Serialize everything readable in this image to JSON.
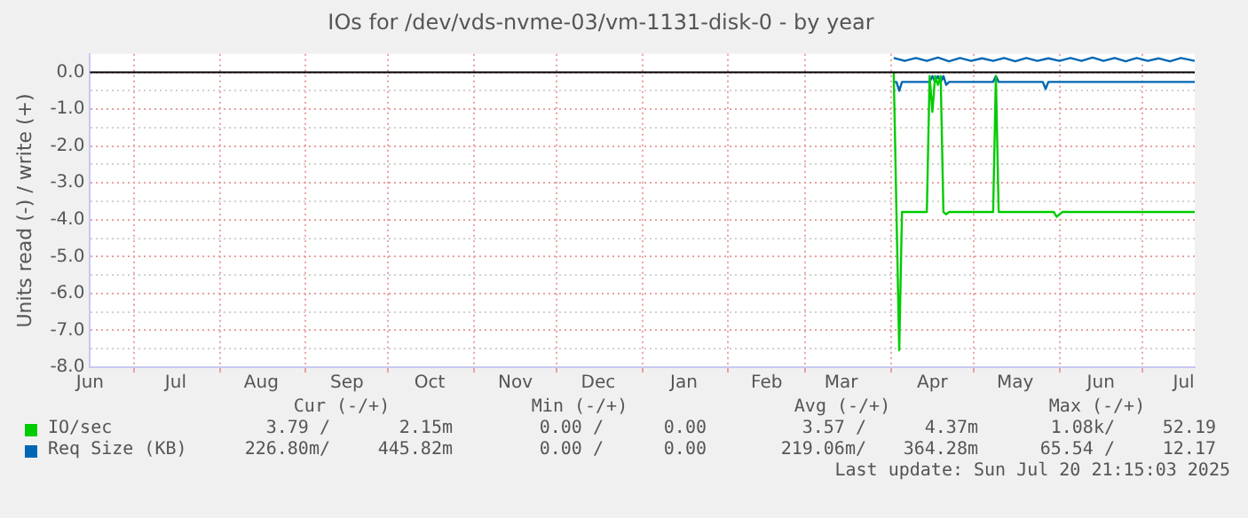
{
  "chart_data": {
    "type": "line",
    "title": "IOs for /dev/vds-nvme-03/vm-1131-disk-0 - by year",
    "ylabel": "Units read (-) / write (+)",
    "xlim": [
      "2024-06-15",
      "2025-07-20"
    ],
    "xticks": [
      {
        "value": "2024-06-15",
        "label": "Jun"
      },
      {
        "value": "2024-07-01",
        "label": null
      },
      {
        "value": "2024-07-16",
        "label": "Jul"
      },
      {
        "value": "2024-08-01",
        "label": null
      },
      {
        "value": "2024-08-16",
        "label": "Aug"
      },
      {
        "value": "2024-09-01",
        "label": null
      },
      {
        "value": "2024-09-16",
        "label": "Sep"
      },
      {
        "value": "2024-10-01",
        "label": null
      },
      {
        "value": "2024-10-16",
        "label": "Oct"
      },
      {
        "value": "2024-11-01",
        "label": null
      },
      {
        "value": "2024-11-16",
        "label": "Nov"
      },
      {
        "value": "2024-12-01",
        "label": null
      },
      {
        "value": "2024-12-16",
        "label": "Dec"
      },
      {
        "value": "2025-01-01",
        "label": null
      },
      {
        "value": "2025-01-16",
        "label": "Jan"
      },
      {
        "value": "2025-02-01",
        "label": null
      },
      {
        "value": "2025-02-15",
        "label": "Feb"
      },
      {
        "value": "2025-03-01",
        "label": null
      },
      {
        "value": "2025-03-14",
        "label": "Mar"
      },
      {
        "value": "2025-04-01",
        "label": null
      },
      {
        "value": "2025-04-16",
        "label": "Apr"
      },
      {
        "value": "2025-05-01",
        "label": null
      },
      {
        "value": "2025-05-16",
        "label": "May"
      },
      {
        "value": "2025-06-01",
        "label": null
      },
      {
        "value": "2025-06-16",
        "label": "Jun"
      },
      {
        "value": "2025-07-01",
        "label": null
      },
      {
        "value": "2025-07-16",
        "label": "Jul"
      }
    ],
    "ylim": [
      -8,
      0.5
    ],
    "yticks": [
      {
        "value": -8,
        "label": "-8.0"
      },
      {
        "value": -7.5,
        "label": null
      },
      {
        "value": -7,
        "label": "-7.0"
      },
      {
        "value": -6.5,
        "label": null
      },
      {
        "value": -6,
        "label": "-6.0"
      },
      {
        "value": -5.5,
        "label": null
      },
      {
        "value": -5,
        "label": "-5.0"
      },
      {
        "value": -4.5,
        "label": null
      },
      {
        "value": -4,
        "label": "-4.0"
      },
      {
        "value": -3.5,
        "label": null
      },
      {
        "value": -3,
        "label": "-3.0"
      },
      {
        "value": -2.5,
        "label": null
      },
      {
        "value": -2,
        "label": "-2.0"
      },
      {
        "value": -1.5,
        "label": null
      },
      {
        "value": -1,
        "label": "-1.0"
      },
      {
        "value": -0.5,
        "label": null
      },
      {
        "value": 0,
        "label": "0.0"
      }
    ],
    "grid": true,
    "legend": "bottom left",
    "marker": "none",
    "line_style": "solid",
    "ref_lines": [
      {
        "axis": "y",
        "value": 0,
        "color": "#000000"
      }
    ],
    "series": [
      {
        "name": "IO/sec",
        "color": "#00cc00",
        "x": [
          "2025-04-02",
          "2025-04-03",
          "2025-04-04",
          "2025-04-05",
          "2025-04-14",
          "2025-04-15",
          "2025-04-16",
          "2025-04-17",
          "2025-04-18",
          "2025-04-19",
          "2025-04-20",
          "2025-04-21",
          "2025-04-22",
          "2025-05-08",
          "2025-05-09",
          "2025-05-10",
          "2025-05-30",
          "2025-05-31",
          "2025-06-02",
          "2025-07-20"
        ],
        "values": [
          0,
          -3.79,
          -7.54,
          -3.79,
          -3.79,
          -0.1,
          -1.07,
          -0.1,
          -0.34,
          -0.1,
          -3.79,
          -3.85,
          -3.79,
          -3.79,
          -0.1,
          -3.79,
          -3.79,
          -3.92,
          -3.79,
          -3.79
        ]
      },
      {
        "name": "Req Size (KB)",
        "color": "#0066b3",
        "x": [
          "2025-04-02",
          "2025-04-03",
          "2025-04-04",
          "2025-04-05",
          "2025-04-15",
          "2025-04-16",
          "2025-04-17",
          "2025-04-18",
          "2025-04-19",
          "2025-04-20",
          "2025-04-21",
          "2025-04-22",
          "2025-05-08",
          "2025-05-09",
          "2025-05-10",
          "2025-05-26",
          "2025-05-27",
          "2025-05-28",
          "2025-07-20"
        ],
        "values": [
          -0.26,
          -0.26,
          -0.5,
          -0.26,
          -0.26,
          -0.1,
          -0.26,
          -0.1,
          -0.26,
          -0.1,
          -0.34,
          -0.26,
          -0.26,
          -0.1,
          -0.26,
          -0.26,
          -0.45,
          -0.26,
          -0.26
        ]
      },
      {
        "color": "#0066b3",
        "x": [
          "2025-04-02",
          "2025-04-06",
          "2025-04-10",
          "2025-04-14",
          "2025-04-18",
          "2025-04-22",
          "2025-04-26",
          "2025-04-30",
          "2025-05-04",
          "2025-05-08",
          "2025-05-12",
          "2025-05-16",
          "2025-05-20",
          "2025-05-24",
          "2025-05-28",
          "2025-06-01",
          "2025-06-05",
          "2025-06-09",
          "2025-06-13",
          "2025-06-17",
          "2025-06-21",
          "2025-06-25",
          "2025-06-29",
          "2025-07-03",
          "2025-07-07",
          "2025-07-11",
          "2025-07-15",
          "2025-07-20"
        ],
        "values": [
          0.39,
          0.31,
          0.39,
          0.31,
          0.4,
          0.3,
          0.39,
          0.31,
          0.38,
          0.31,
          0.39,
          0.3,
          0.39,
          0.31,
          0.38,
          0.31,
          0.39,
          0.31,
          0.4,
          0.31,
          0.39,
          0.3,
          0.39,
          0.31,
          0.38,
          0.3,
          0.39,
          0.31
        ]
      }
    ],
    "annotations": [
      "Cur (-/+)",
      "Min (-/+)",
      "Avg (-/+)",
      "Max (-/+)",
      "3.79 /",
      "2.15m",
      "0.00 /",
      "0.00",
      "3.57 /",
      "4.37m",
      "1.08k/",
      "52.19",
      "226.80m/",
      "445.82m",
      "0.00 /",
      "0.00",
      "219.06m/",
      "364.28m",
      "65.54 /",
      "12.17",
      "Last update: Sun Jul 20 21:15:03 2025"
    ]
  }
}
